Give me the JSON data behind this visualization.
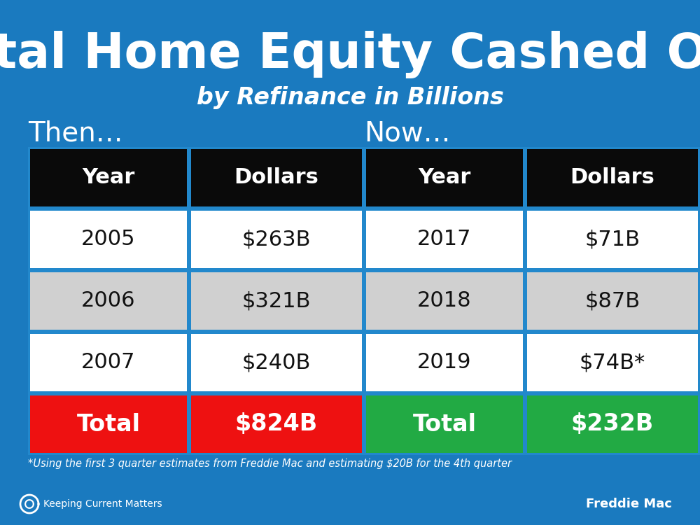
{
  "background_color": "#1a7abf",
  "title": "Total Home Equity Cashed Out",
  "subtitle": "by Refinance in Billions",
  "title_color": "#ffffff",
  "subtitle_color": "#ffffff",
  "then_label": "Then…",
  "now_label": "Now…",
  "label_color": "#ffffff",
  "table_header_bg": "#0a0a0a",
  "table_header_color": "#ffffff",
  "col_headers": [
    "Year",
    "Dollars"
  ],
  "then_rows": [
    [
      "2005",
      "$263B"
    ],
    [
      "2006",
      "$321B"
    ],
    [
      "2007",
      "$240B"
    ]
  ],
  "then_total": [
    "Total",
    "$824B"
  ],
  "then_total_bg": "#ee1111",
  "now_rows": [
    [
      "2017",
      "$71B"
    ],
    [
      "2018",
      "$87B"
    ],
    [
      "2019",
      "$74B*"
    ]
  ],
  "now_total": [
    "Total",
    "$232B"
  ],
  "now_total_bg": "#22aa44",
  "total_text_color": "#ffffff",
  "row_colors": [
    "#ffffff",
    "#d0d0d0",
    "#ffffff"
  ],
  "row_text_color": "#111111",
  "footnote": "*Using the first 3 quarter estimates from Freddie Mac and estimating $20B for the 4th quarter",
  "footnote_color": "#ffffff",
  "source_text": "Freddie Mac",
  "source_color": "#ffffff",
  "brand_text": "Keeping Current Matters",
  "brand_color": "#ffffff",
  "table_border_color": "#aaaaaa",
  "table_outer_border_color": "#2288cc",
  "table_outer_lw": 4.0
}
